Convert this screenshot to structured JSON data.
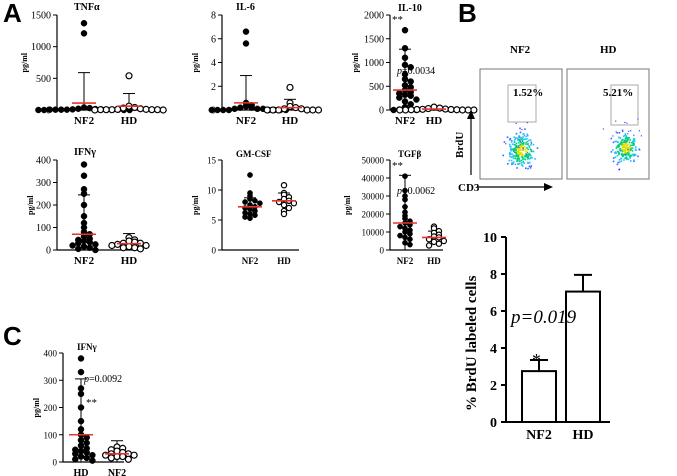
{
  "panel_labels": {
    "A": "A",
    "B": "B",
    "C": "C"
  },
  "chart_data": [
    {
      "id": "tnf",
      "type": "scatter",
      "panel": "A",
      "title": "TNFα",
      "xlabel": "",
      "ylabel": "pg/ml",
      "categories": [
        "NF2",
        "HD"
      ],
      "ylim": [
        0,
        1500
      ],
      "ticks": [
        "0",
        "500",
        "1000",
        "1500"
      ],
      "tickvals": [
        0,
        500,
        1000,
        1500
      ],
      "series": [
        {
          "values": [
            1370,
            1210,
            40,
            30,
            20,
            15,
            10,
            10,
            5,
            5,
            5,
            5,
            5,
            5,
            5,
            0,
            0,
            0,
            0
          ],
          "filled": true,
          "mean": 110,
          "err": 480
        },
        {
          "values": [
            540,
            60,
            40,
            30,
            20,
            10,
            10,
            5,
            5,
            5,
            5,
            5,
            0,
            0
          ],
          "filled": false,
          "mean": 60,
          "err": 200
        }
      ]
    },
    {
      "id": "il6",
      "type": "scatter",
      "panel": "A",
      "title": "IL-6",
      "xlabel": "",
      "ylabel": "pg/ml",
      "categories": [
        "NF2",
        "HD"
      ],
      "ylim": [
        0,
        8
      ],
      "ticks": [
        "0",
        "2",
        "4",
        "6",
        "8"
      ],
      "tickvals": [
        0,
        2,
        4,
        6,
        8
      ],
      "series": [
        {
          "values": [
            6.6,
            5.6,
            0.6,
            0.4,
            0.3,
            0.2,
            0.2,
            0.1,
            0.1,
            0.1,
            0,
            0,
            0,
            0,
            0,
            0,
            0,
            0
          ],
          "filled": true,
          "mean": 0.6,
          "err": 2.3
        },
        {
          "values": [
            1.9,
            0.6,
            0.3,
            0.2,
            0.1,
            0.1,
            0,
            0,
            0,
            0,
            0,
            0
          ],
          "filled": false,
          "mean": 0.2,
          "err": 0.7
        }
      ]
    },
    {
      "id": "il10",
      "type": "scatter",
      "panel": "A",
      "title": "IL-10",
      "xlabel": "",
      "ylabel": "pg/ml",
      "categories": [
        "NF2",
        "HD"
      ],
      "ylim": [
        0,
        2000
      ],
      "ticks": [
        "0",
        "500",
        "1000",
        "1500",
        "2000"
      ],
      "tickvals": [
        0,
        500,
        1000,
        1500,
        2000
      ],
      "annotations": {
        "stars": "**",
        "pvalue_p": "p",
        "pvalue_rest": "=0.0034"
      },
      "series": [
        {
          "values": [
            1680,
            1300,
            1100,
            950,
            900,
            750,
            650,
            600,
            520,
            480,
            420,
            380,
            350,
            320,
            300,
            260,
            220,
            180,
            120,
            60,
            30,
            10,
            0,
            0
          ],
          "filled": true,
          "mean": 420,
          "err": 860
        },
        {
          "values": [
            60,
            40,
            30,
            20,
            15,
            10,
            10,
            5,
            5,
            0,
            0,
            0,
            0,
            0
          ],
          "filled": false,
          "mean": 20,
          "err": 50
        }
      ]
    },
    {
      "id": "ifng",
      "type": "scatter",
      "panel": "A",
      "title": "IFNγ",
      "xlabel": "",
      "ylabel": "pg/ml",
      "categories": [
        "NF2",
        "HD"
      ],
      "ylim": [
        0,
        400
      ],
      "ticks": [
        "0",
        "100",
        "200",
        "300",
        "400"
      ],
      "tickvals": [
        0,
        100,
        200,
        300,
        400
      ],
      "series": [
        {
          "values": [
            380,
            330,
            270,
            250,
            200,
            150,
            120,
            100,
            80,
            70,
            60,
            50,
            45,
            40,
            35,
            30,
            25,
            20,
            15,
            10,
            5,
            0
          ],
          "filled": true,
          "mean": 70,
          "err": 175
        },
        {
          "values": [
            55,
            45,
            40,
            35,
            30,
            30,
            25,
            20,
            20,
            15,
            10,
            10,
            5
          ],
          "filled": false,
          "mean": 28,
          "err": 45
        }
      ]
    },
    {
      "id": "gmcsf",
      "type": "scatter",
      "panel": "A",
      "title": "GM-CSF",
      "xlabel": "",
      "ylabel": "pg/ml",
      "categories": [
        "NF2",
        "HD"
      ],
      "ylim": [
        0,
        15
      ],
      "ticks": [
        "0",
        "5",
        "10",
        "15"
      ],
      "tickvals": [
        0,
        5,
        10,
        15
      ],
      "series": [
        {
          "values": [
            12.5,
            9.5,
            9,
            8.5,
            8.2,
            8,
            7.8,
            7.5,
            7.2,
            7,
            6.8,
            6.5,
            6.2,
            6,
            5.8,
            5.5,
            5.3
          ],
          "filled": true,
          "mean": 7.2,
          "err": 1.5
        },
        {
          "values": [
            10.8,
            9.5,
            9.2,
            8.8,
            8.5,
            8.2,
            8,
            7.8,
            7.5,
            7,
            6.5,
            6
          ],
          "filled": false,
          "mean": 8.2,
          "err": 1.3
        }
      ]
    },
    {
      "id": "tgfb",
      "type": "scatter",
      "panel": "A",
      "title": "TGFβ",
      "xlabel": "",
      "ylabel": "pg/ml",
      "categories": [
        "NF2",
        "HD"
      ],
      "ylim": [
        0,
        50000
      ],
      "ticks": [
        "0",
        "10000",
        "20000",
        "30000",
        "40000",
        "50000"
      ],
      "tickvals": [
        0,
        10000,
        20000,
        30000,
        40000,
        50000
      ],
      "annotations": {
        "stars": "**",
        "pvalue_p": "p",
        "pvalue_rest": "=0.0062"
      },
      "series": [
        {
          "values": [
            41000,
            33000,
            30000,
            28000,
            24000,
            21000,
            19000,
            17500,
            16000,
            15000,
            14000,
            13000,
            12000,
            11000,
            10000,
            9000,
            8000,
            7000,
            6000,
            4000,
            3000
          ],
          "filled": true,
          "mean": 15000,
          "err": 26500
        },
        {
          "values": [
            13000,
            12000,
            10500,
            9500,
            8500,
            7500,
            7000,
            6000,
            5000,
            4500,
            3500,
            2500
          ],
          "filled": false,
          "mean": 7000,
          "err": 3500
        }
      ]
    },
    {
      "id": "c",
      "type": "scatter",
      "panel": "C",
      "title": "IFNγ",
      "xlabel": "",
      "ylabel": "pg/ml",
      "categories": [
        "HD",
        "NF2"
      ],
      "ylim": [
        0,
        400
      ],
      "ticks": [
        "0",
        "100",
        "200",
        "300",
        "400"
      ],
      "tickvals": [
        0,
        100,
        200,
        300,
        400
      ],
      "annotations": {
        "stars": "**",
        "pvalue_p": "p",
        "pvalue_rest": "=0.0092"
      },
      "series": [
        {
          "values": [
            380,
            330,
            270,
            250,
            200,
            150,
            120,
            100,
            90,
            80,
            70,
            60,
            50,
            45,
            40,
            35,
            30,
            25,
            20,
            15,
            10,
            5
          ],
          "filled": true,
          "mean": 100,
          "err": 205
        },
        {
          "values": [
            55,
            50,
            45,
            40,
            35,
            30,
            30,
            25,
            25,
            20,
            20,
            15,
            10
          ],
          "filled": false,
          "mean": 30,
          "err": 48
        }
      ]
    },
    {
      "id": "bar",
      "type": "bar",
      "panel": "B",
      "title": "",
      "xlabel": "",
      "ylabel": "% BrdU labeled cells",
      "categories": [
        "NF2",
        "HD"
      ],
      "values": [
        2.75,
        7.05
      ],
      "errors": [
        0.6,
        0.9
      ],
      "ylim": [
        0,
        10
      ],
      "ticks": [
        "0",
        "2",
        "4",
        "6",
        "8",
        "10"
      ],
      "tickvals": [
        0,
        2,
        4,
        6,
        8,
        10
      ],
      "annotations": {
        "stars": "*",
        "pvalue": "p=0.019"
      }
    }
  ],
  "flow": {
    "plots": [
      {
        "name": "NF2",
        "percent": "1.52%"
      },
      {
        "name": "HD",
        "percent": "5.21%"
      }
    ],
    "x_axis_label": "CD3",
    "y_axis_label": "BrdU"
  },
  "colors": {
    "mean_line": "#e8342c",
    "text": "#000000",
    "points": "#000000"
  }
}
